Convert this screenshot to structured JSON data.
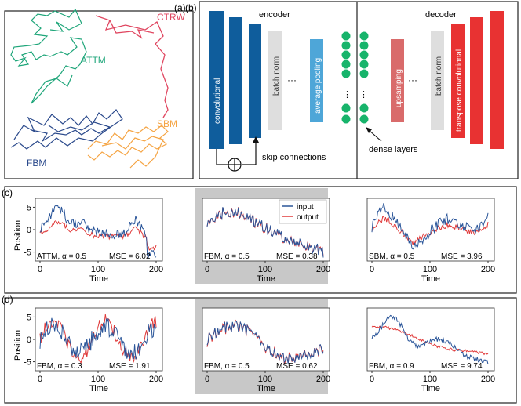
{
  "panel_a": {
    "tag": "(a)",
    "labels": {
      "ctrw": "CTRW",
      "attm": "ATTM",
      "sbm": "SBM",
      "fbm": "FBM"
    },
    "colors": {
      "ctrw": "#e04660",
      "attm": "#1fa67a",
      "sbm": "#f5a443",
      "fbm": "#2b4a8c"
    }
  },
  "panel_b": {
    "tag": "(b)",
    "encoder_title": "encoder",
    "decoder_title": "decoder",
    "layers": {
      "convolutional": "convolutional",
      "batch_norm": "batch norm",
      "average_pooling": "average pooling",
      "upsampling": "upsamping",
      "batch_norm_dec": "batch norm",
      "transpose_convolutional": "transpose convolutional"
    },
    "ellipsis": "···",
    "skip_label": "skip connections",
    "dense_label": "dense layers",
    "colors": {
      "encoder_blue": "#0f5d9c",
      "pool": "#4ea6d8",
      "norm": "#dedede",
      "dense": "#17b46b",
      "upsample": "#d96b6b",
      "transpose": "#e83232"
    }
  },
  "panel_c": {
    "tag": "(c)",
    "legend": {
      "input": "input",
      "output": "output"
    },
    "ylabel": "Position",
    "xlabel": "Time",
    "plots": [
      {
        "name": "ATTM, α = 0.5",
        "mse": "MSE = 6.02",
        "yticks": [
          "5",
          "0",
          "-5"
        ],
        "xticks": [
          "0",
          "100",
          "200"
        ],
        "highlight": false
      },
      {
        "name": "FBM, α = 0.5",
        "mse": "MSE =  0.38",
        "xticks": [
          "0",
          "100",
          "200"
        ],
        "highlight": true
      },
      {
        "name": "SBM, α = 0.5",
        "mse": "MSE = 3.96",
        "xticks": [
          "0",
          "100",
          "200"
        ],
        "highlight": false
      }
    ]
  },
  "panel_d": {
    "tag": "(d)",
    "ylabel": "Position",
    "xlabel": "Time",
    "plots": [
      {
        "name": "FBM, α = 0.3",
        "mse": "MSE = 1.91",
        "yticks": [
          "5",
          "0",
          "-5"
        ],
        "xticks": [
          "0",
          "100",
          "200"
        ],
        "highlight": false
      },
      {
        "name": "FBM, α = 0.5",
        "mse": "MSE =  0.62",
        "xticks": [
          "0",
          "100",
          "200"
        ],
        "highlight": true
      },
      {
        "name": "FBM, α = 0.9",
        "mse": "MSE = 9.74",
        "xticks": [
          "0",
          "100",
          "200"
        ],
        "highlight": false
      }
    ]
  },
  "colors": {
    "input": "#2a5599",
    "output": "#e03a3a",
    "frame": "#222222",
    "highlight_box": "#c8c8c8"
  }
}
